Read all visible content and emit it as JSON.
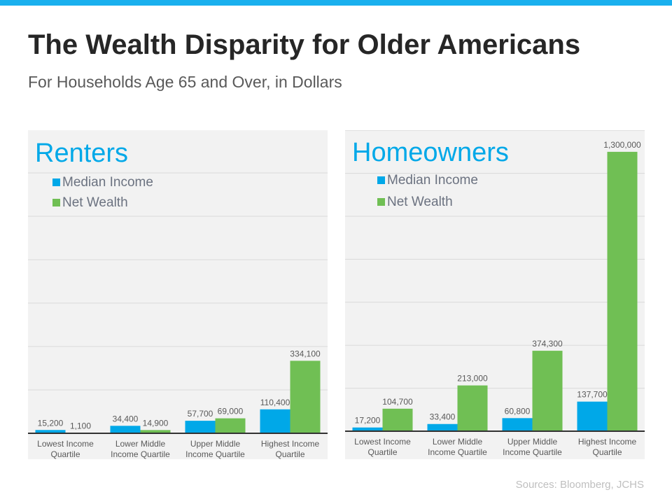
{
  "title": "The Wealth Disparity for Older Americans",
  "subtitle": "For Households Age 65 and Over, in Dollars",
  "source": "Sources: Bloomberg, JCHS",
  "colors": {
    "median_income": "#00a8e8",
    "net_wealth": "#70bf54",
    "panel_title": "#00a8e8"
  },
  "chart_data": [
    {
      "type": "bar",
      "title": "Renters",
      "categories": [
        "Lowest Income Quartile",
        "Lower Middle Income Quartile",
        "Upper Middle Income Quartile",
        "Highest Income Quartile"
      ],
      "category_lines": [
        [
          "Lowest Income",
          "Quartile"
        ],
        [
          "Lower Middle",
          "Income Quartile"
        ],
        [
          "Upper Middle",
          "Income Quartile"
        ],
        [
          "Highest Income",
          "Quartile"
        ]
      ],
      "series": [
        {
          "name": "Median Income",
          "values": [
            15200,
            34400,
            57700,
            110400
          ],
          "labels": [
            "15,200",
            "34,400",
            "57,700",
            "110,400"
          ]
        },
        {
          "name": "Net Wealth",
          "values": [
            1100,
            14900,
            69000,
            334100
          ],
          "labels": [
            "1,100",
            "14,900",
            "69,000",
            "334,100"
          ]
        }
      ],
      "ylim": [
        0,
        1400000
      ],
      "grid": true,
      "legend": "top-left"
    },
    {
      "type": "bar",
      "title": "Homeowners",
      "categories": [
        "Lowest Income Quartile",
        "Lower Middle Income Quartile",
        "Upper Middle Income Quartile",
        "Highest Income Quartile"
      ],
      "category_lines": [
        [
          "Lowest Income",
          "Quartile"
        ],
        [
          "Lower Middle",
          "Income Quartile"
        ],
        [
          "Upper Middle",
          "Income Quartile"
        ],
        [
          "Highest Income",
          "Quartile"
        ]
      ],
      "series": [
        {
          "name": "Median Income",
          "values": [
            17200,
            33400,
            60800,
            137700
          ],
          "labels": [
            "17,200",
            "33,400",
            "60,800",
            "137,700"
          ]
        },
        {
          "name": "Net Wealth",
          "values": [
            104700,
            213000,
            374300,
            1300000
          ],
          "labels": [
            "104,700",
            "213,000",
            "374,300",
            "1,300,000"
          ]
        }
      ],
      "ylim": [
        0,
        1400000
      ],
      "grid": true,
      "legend": "top-left"
    }
  ]
}
